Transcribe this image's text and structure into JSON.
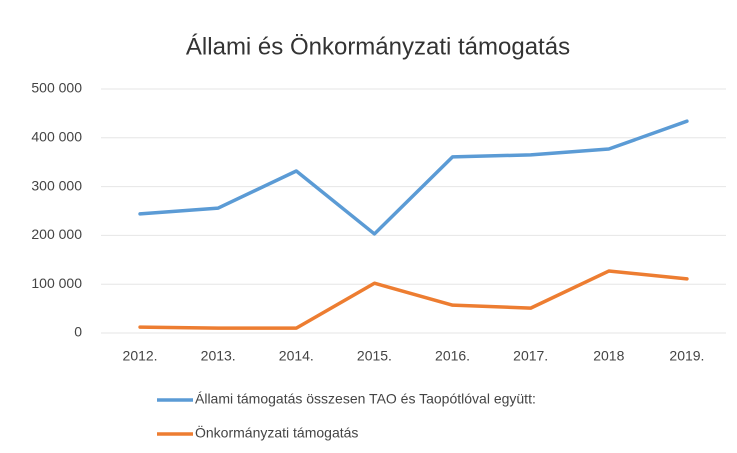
{
  "chart_data": {
    "type": "line",
    "title": "Állami és Önkormányzati támogatás",
    "categories": [
      "2012.",
      "2013.",
      "2014.",
      "2015.",
      "2016.",
      "2017.",
      "2018",
      "2019."
    ],
    "series": [
      {
        "name": "Állami támogatás összesen TAO és Taopótlóval együtt:",
        "color": "#5b9bd5",
        "values": [
          244000,
          256000,
          332000,
          203000,
          361000,
          365000,
          377000,
          434000
        ]
      },
      {
        "name": "Önkormányzati támogatás",
        "color": "#ed7d31",
        "values": [
          12000,
          10000,
          10000,
          102000,
          57000,
          51000,
          127000,
          111000
        ]
      }
    ],
    "ylim": [
      0,
      500000
    ],
    "yticks": [
      0,
      {
        "value": 100000,
        "label": "100 000"
      },
      {
        "value": 200000,
        "label": "200 000"
      },
      {
        "value": 300000,
        "label": "300 000"
      },
      {
        "value": 400000,
        "label": "400 000"
      },
      {
        "value": 500000,
        "label": "500 000"
      }
    ],
    "grid": true
  }
}
